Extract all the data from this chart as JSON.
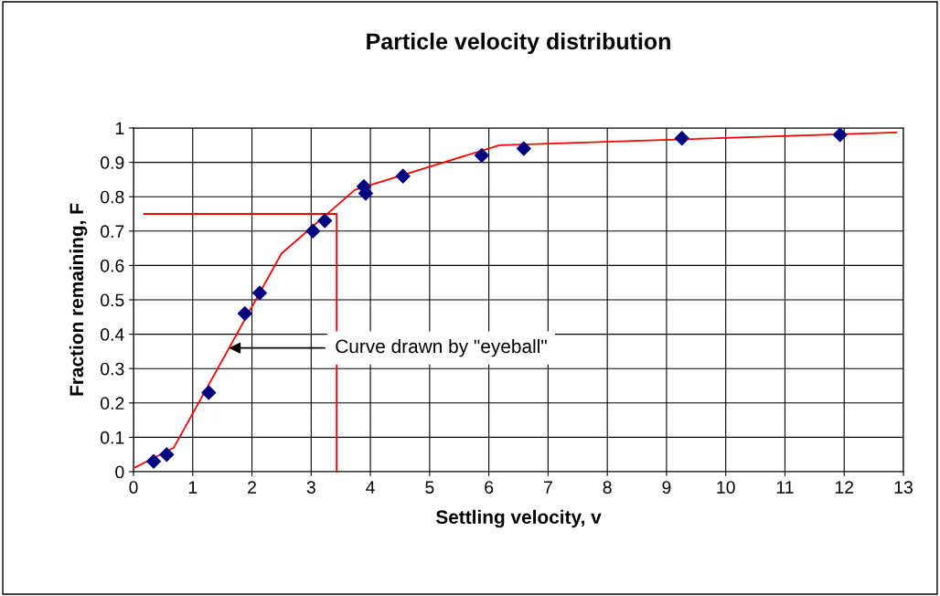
{
  "chart_data": {
    "type": "scatter",
    "title": "Particle velocity distribution",
    "xlabel": "Settling velocity, v",
    "ylabel": "Fraction remaining, F",
    "xlim": [
      0,
      13
    ],
    "xticks": [
      0,
      1,
      2,
      3,
      4,
      5,
      6,
      7,
      8,
      9,
      10,
      11,
      12,
      13
    ],
    "ylim": [
      0,
      1
    ],
    "yticks": [
      0,
      0.1,
      0.2,
      0.3,
      0.4,
      0.5,
      0.6,
      0.7,
      0.8,
      0.9,
      1
    ],
    "grid": true,
    "marker": "diamond",
    "series": [
      {
        "color": "#000080",
        "x": [
          0.34,
          0.56,
          1.27,
          1.88,
          2.13,
          3.03,
          3.23,
          3.89,
          3.92,
          4.55,
          5.88,
          6.59,
          9.26,
          11.93
        ],
        "values": [
          0.03,
          0.05,
          0.23,
          0.46,
          0.52,
          0.7,
          0.73,
          0.83,
          0.81,
          0.86,
          0.92,
          0.94,
          0.97,
          0.98
        ]
      },
      {
        "type": "line",
        "color": "#ff0000",
        "marker": "none",
        "x": [
          0,
          0.68,
          2.5,
          3.74,
          6.18,
          12.88
        ],
        "values": [
          0.01,
          0.07,
          0.635,
          0.82,
          0.95,
          0.987
        ]
      },
      {
        "type": "line",
        "color": "#ff0000",
        "marker": "none",
        "x": [
          3.43,
          3.43,
          0.18
        ],
        "values": [
          0,
          0.75,
          0.75
        ]
      }
    ],
    "annotations": [
      {
        "text": "Curve drawn by \"eyeball\"",
        "x": 1.57,
        "y": 0.36
      }
    ]
  }
}
